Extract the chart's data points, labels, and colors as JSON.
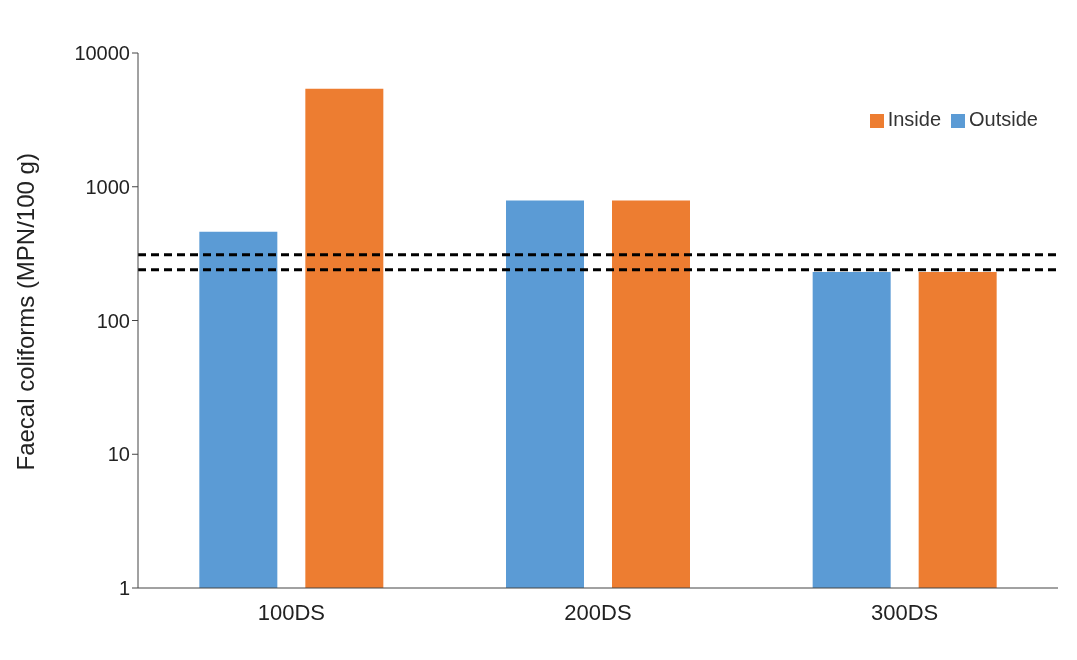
{
  "chart_data": {
    "type": "bar",
    "ylabel": "Faecal coliforms (MPN/100 g)",
    "categories": [
      "100DS",
      "200DS",
      "300DS"
    ],
    "series": [
      {
        "name": "Outside",
        "color": "#5b9bd5",
        "values": [
          460,
          790,
          230
        ]
      },
      {
        "name": "Inside",
        "color": "#ed7d31",
        "values": [
          5400,
          790,
          230
        ]
      }
    ],
    "log": "y",
    "ylim": [
      1,
      10000
    ],
    "yticks": [
      1,
      10,
      100,
      1000,
      10000
    ],
    "legend": "top right",
    "ref_lines": [
      {
        "axis": "y",
        "value": 310,
        "color": "#000000",
        "line_style": "dashed"
      },
      {
        "axis": "y",
        "value": 240,
        "color": "#000000",
        "line_style": "dashed"
      }
    ]
  }
}
